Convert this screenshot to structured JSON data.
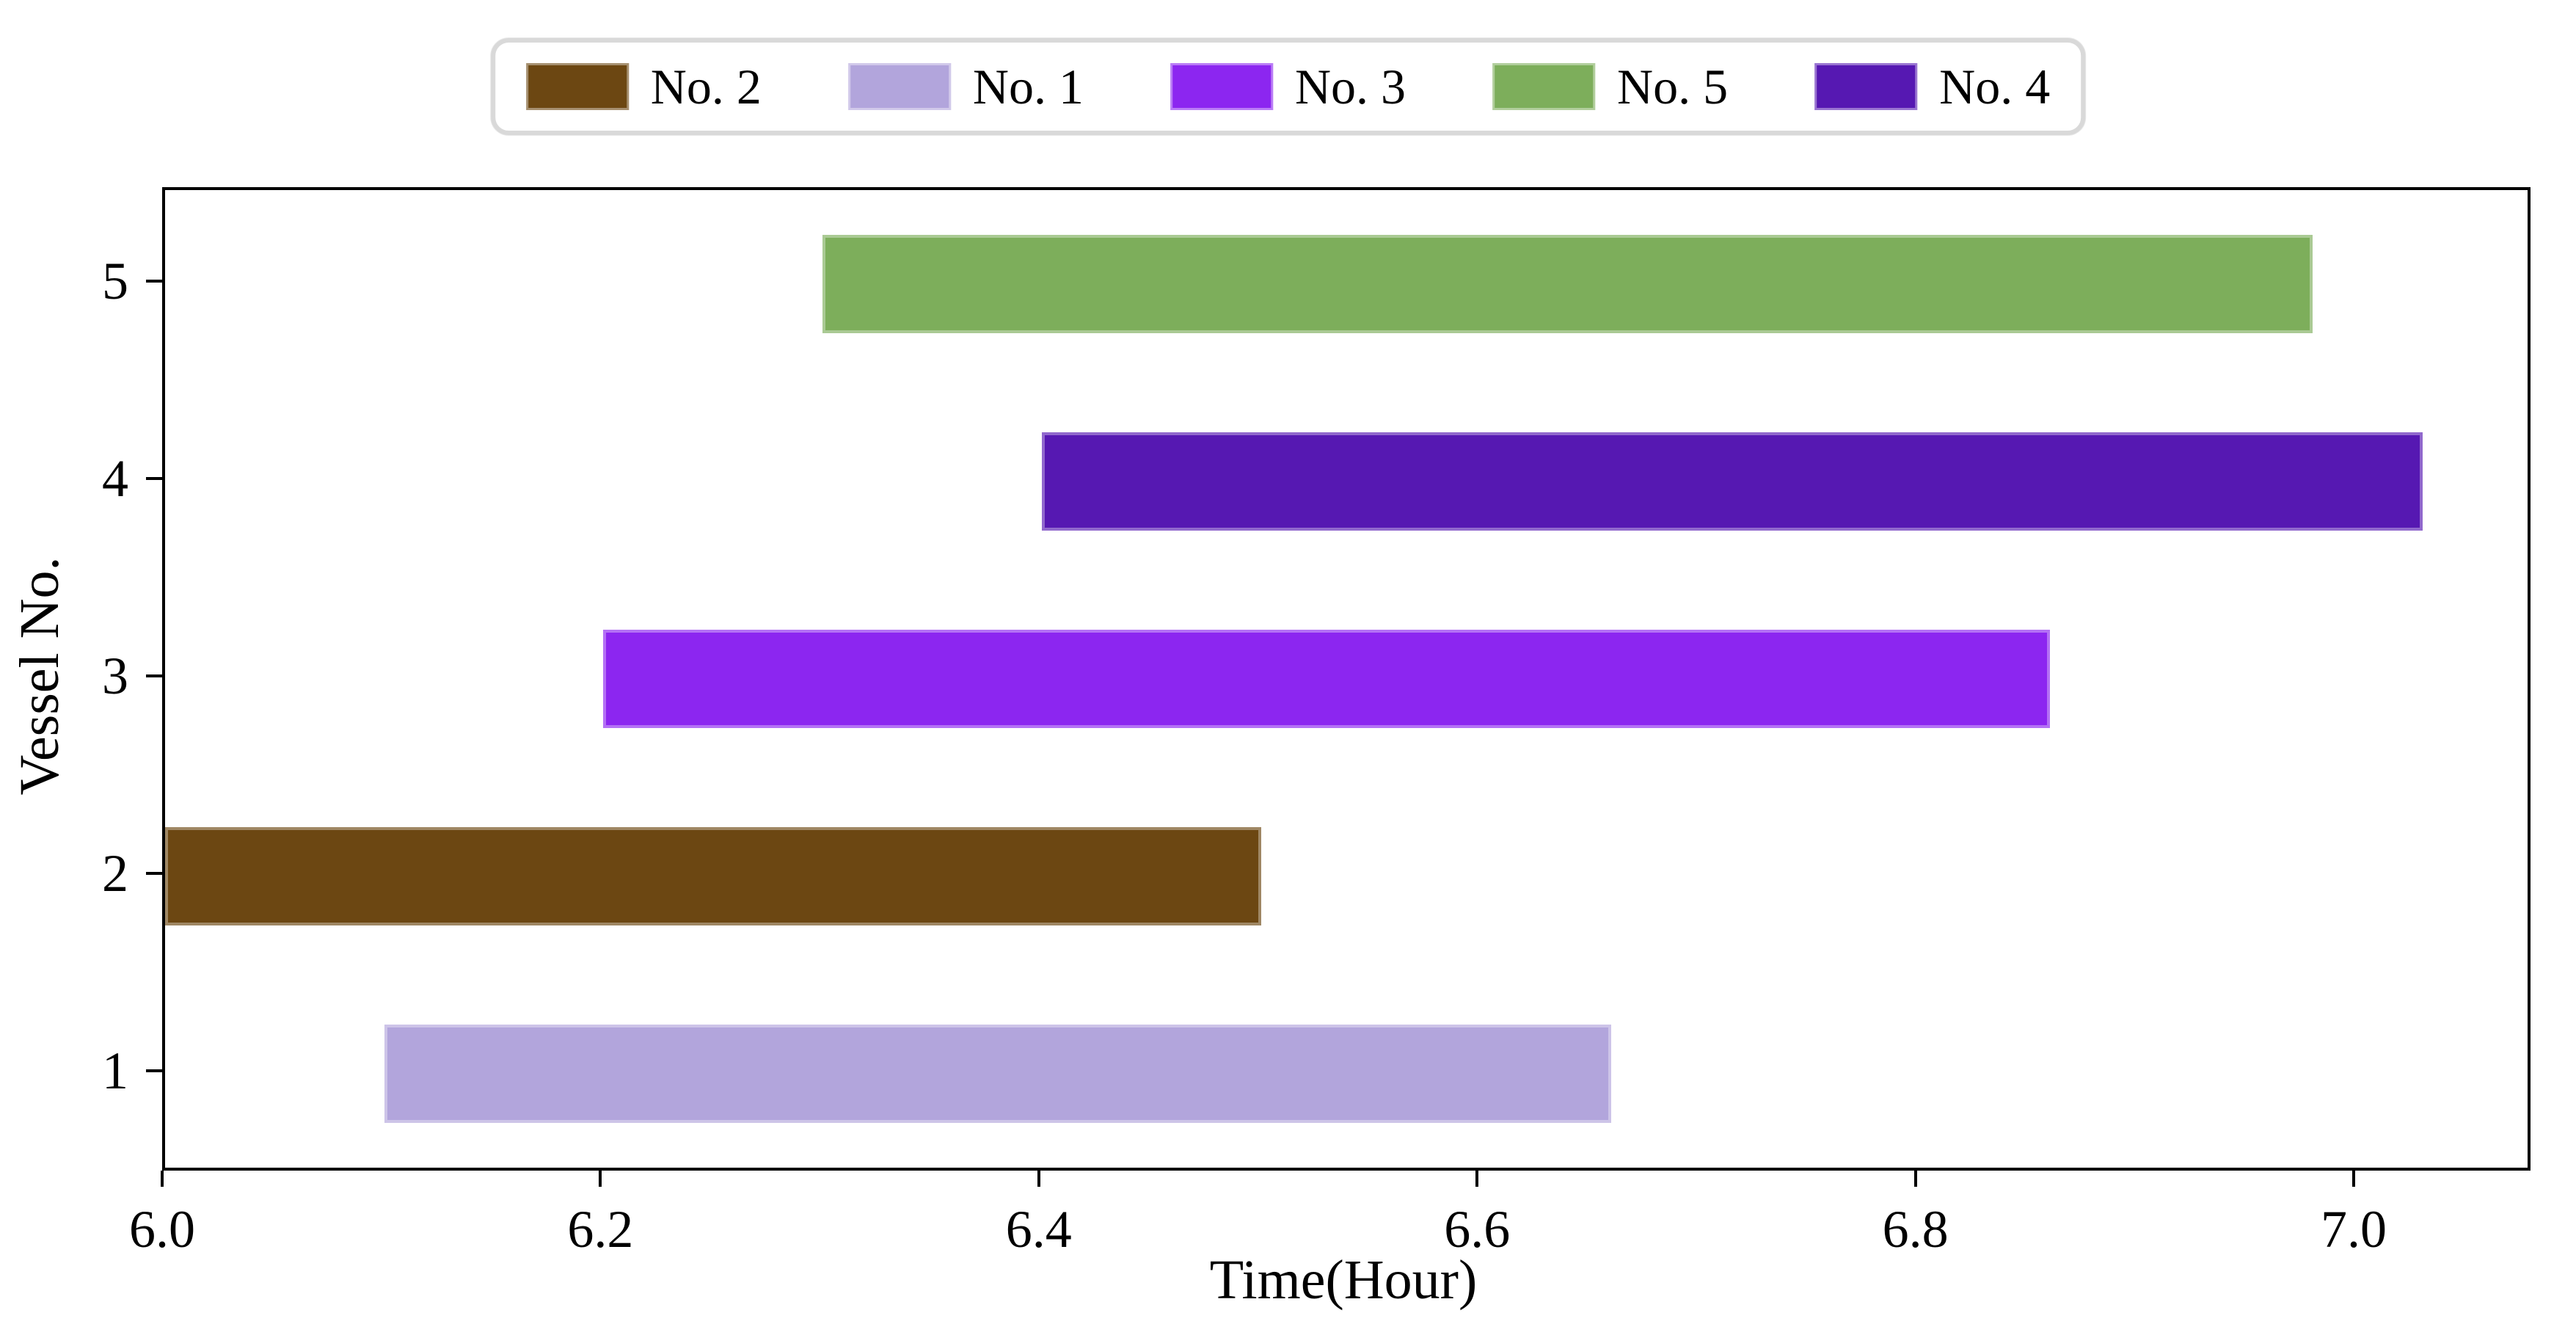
{
  "figure": {
    "background": "#ffffff",
    "text_color": "#000000",
    "legend_border_color": "#d9d9d9"
  },
  "chart_data": {
    "type": "bar",
    "orientation": "horizontal",
    "title": "",
    "xlabel": "Time(Hour)",
    "ylabel": "Vessel No.",
    "xlim": [
      6.0,
      7.078
    ],
    "ylim": [
      0.525,
      5.475
    ],
    "x_ticks": [
      6.0,
      6.2,
      6.4,
      6.6,
      6.8,
      7.0
    ],
    "x_tick_labels": [
      "6.0",
      "6.2",
      "6.4",
      "6.6",
      "6.8",
      "7.0"
    ],
    "y_ticks": [
      1,
      2,
      3,
      4,
      5
    ],
    "y_tick_labels": [
      "1",
      "2",
      "3",
      "4",
      "5"
    ],
    "bar_height": 0.5,
    "grid": false,
    "legend_position": "upper center outside",
    "series": [
      {
        "name": "No. 2",
        "vessel": 2,
        "start": 6.0,
        "end": 6.5,
        "color": "#6C4712"
      },
      {
        "name": "No. 1",
        "vessel": 1,
        "start": 6.1,
        "end": 6.66,
        "color": "#B2A5DC"
      },
      {
        "name": "No. 3",
        "vessel": 3,
        "start": 6.2,
        "end": 6.86,
        "color": "#8C26F0"
      },
      {
        "name": "No. 5",
        "vessel": 5,
        "start": 6.3,
        "end": 6.98,
        "color": "#7DAE5B"
      },
      {
        "name": "No. 4",
        "vessel": 4,
        "start": 6.4,
        "end": 7.03,
        "color": "#5618B2"
      }
    ]
  }
}
